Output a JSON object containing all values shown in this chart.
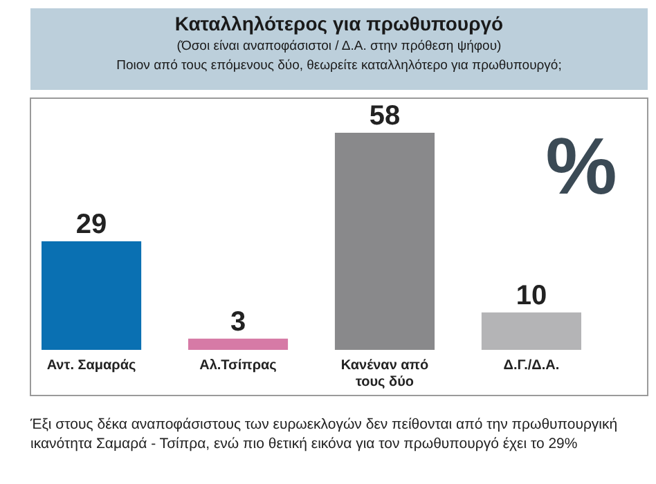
{
  "chart_data": {
    "type": "bar",
    "title": "Καταλληλότερος για πρωθυπουργό",
    "subtitle": "(Όσοι είναι αναποφάσιστοι / Δ.Α. στην πρόθεση ψήφου)",
    "ylabel": "%",
    "categories": [
      "Αντ. Σαμαράς",
      "Αλ.Τσίπρας",
      "Κανέναν από τους δύο",
      "Δ.Γ./Δ.Α."
    ],
    "values": [
      29,
      3,
      58,
      10
    ],
    "colors": [
      "#0a70b2",
      "#d67aa6",
      "#89898b",
      "#b4b4b6"
    ],
    "data_labels": true,
    "annotations": [
      "Ποιον από τους επόμενους δύο, θεωρείτε καταλληλότερο για πρωθυπουργό;",
      "Έξι στους δέκα αναποφάσιστους των ευρωεκλογών δεν πείθονται από την πρωθυπουργική ικανότητα Σαμαρά - Τσίπρα, ενώ πιο θετική εικόνα για τον πρωθυπουργό έχει το 29%"
    ]
  }
}
